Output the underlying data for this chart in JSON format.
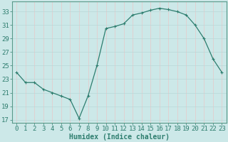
{
  "x": [
    0,
    1,
    2,
    3,
    4,
    5,
    6,
    7,
    8,
    9,
    10,
    11,
    12,
    13,
    14,
    15,
    16,
    17,
    18,
    19,
    20,
    21,
    22,
    23
  ],
  "y": [
    24.0,
    22.5,
    22.5,
    21.5,
    21.0,
    20.5,
    20.0,
    17.2,
    20.5,
    25.0,
    30.5,
    30.8,
    31.2,
    32.5,
    32.8,
    33.2,
    33.5,
    33.3,
    33.0,
    32.5,
    31.0,
    29.0,
    26.0,
    24.0
  ],
  "line_color": "#2d7d6e",
  "marker": "+",
  "marker_size": 3,
  "bg_color": "#cce8e8",
  "grid_color": "#b8d8d8",
  "grid_color2": "#e8c8c8",
  "xlabel": "Humidex (Indice chaleur)",
  "ylim": [
    16.5,
    34.5
  ],
  "xlim": [
    -0.5,
    23.5
  ],
  "yticks": [
    17,
    19,
    21,
    23,
    25,
    27,
    29,
    31,
    33
  ],
  "xticks": [
    0,
    1,
    2,
    3,
    4,
    5,
    6,
    7,
    8,
    9,
    10,
    11,
    12,
    13,
    14,
    15,
    16,
    17,
    18,
    19,
    20,
    21,
    22,
    23
  ],
  "tick_color": "#2d7d6e",
  "label_fontsize": 6.5,
  "axis_color": "#2d7d6e",
  "spine_color": "#5a9a8a"
}
